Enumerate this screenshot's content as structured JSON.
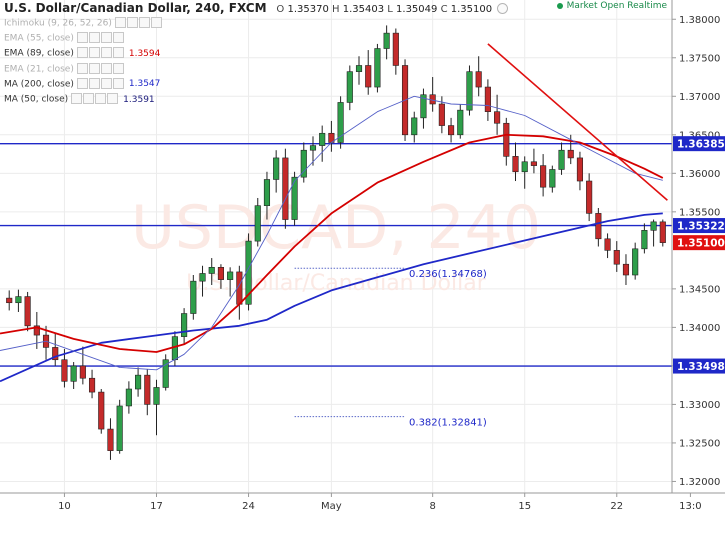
{
  "header": {
    "title": "U.S. Dollar/Canadian Dollar, 240, FXCM",
    "ohlc": [
      {
        "k": "O",
        "v": "1.35370"
      },
      {
        "k": "H",
        "v": "1.35403"
      },
      {
        "k": "L",
        "v": "1.35049"
      },
      {
        "k": "C",
        "v": "1.35100"
      }
    ]
  },
  "market_status": "Market Open Realtime",
  "indicators": [
    {
      "label": "Ichimoku (9, 26, 52, 26)",
      "value": "",
      "color": "#b0b0b0",
      "faded": true
    },
    {
      "label": "EMA (55, close)",
      "value": "",
      "color": "#b0b0b0",
      "faded": true
    },
    {
      "label": "EMA (89, close)",
      "value": "1.3594",
      "color": "#d40000",
      "faded": false
    },
    {
      "label": "EMA (21, close)",
      "value": "",
      "color": "#b0b0b0",
      "faded": true
    },
    {
      "label": "MA (200, close)",
      "value": "1.3547",
      "color": "#1f28c8",
      "faded": false
    },
    {
      "label": "MA (50, close)",
      "value": "1.3591",
      "color": "#1a1a7a",
      "faded": false
    }
  ],
  "watermark": {
    "symbol": "USDCAD, 240",
    "name": "U.S. Dollar/Canadian Dollar"
  },
  "chart_data": {
    "type": "candlestick",
    "ylim": [
      1.3185,
      1.3825
    ],
    "xlim": [
      -1,
      72
    ],
    "x_tick_labels": [
      {
        "i": 6,
        "label": "10"
      },
      {
        "i": 16,
        "label": "17"
      },
      {
        "i": 26,
        "label": "24"
      },
      {
        "i": 35,
        "label": "May"
      },
      {
        "i": 46,
        "label": "8"
      },
      {
        "i": 56,
        "label": "15"
      },
      {
        "i": 66,
        "label": "22"
      },
      {
        "i": 74,
        "label": "13:0"
      }
    ],
    "y_ticks": [
      "1.38000",
      "1.37500",
      "1.37000",
      "1.36500",
      "1.36000",
      "1.35500",
      "1.34500",
      "1.34000",
      "1.33500",
      "1.33000",
      "1.32500",
      "1.32000"
    ],
    "price_labels": [
      {
        "value": 1.36385,
        "text": "1.36385",
        "bg": "#1f28c8"
      },
      {
        "value": 1.35322,
        "text": "1.35322",
        "bg": "#1f28c8"
      },
      {
        "value": 1.351,
        "text": "1.35100",
        "bg": "#e01010"
      },
      {
        "value": 1.33498,
        "text": "1.33498",
        "bg": "#1f28c8"
      }
    ],
    "horizontal_lines": [
      1.36385,
      1.35322,
      1.33498
    ],
    "fib_labels": [
      {
        "text": "0.236(1.34768)",
        "value": 1.34768,
        "i0": 31,
        "i1": 43
      },
      {
        "text": "0.382(1.32841)",
        "value": 1.32841,
        "i0": 31,
        "i1": 43
      }
    ],
    "trendline": {
      "i0": 52,
      "v0": 1.3768,
      "i1": 71.5,
      "v1": 1.3565
    },
    "candles": [
      [
        1.3438,
        1.3448,
        1.3422,
        1.3432
      ],
      [
        1.3432,
        1.3449,
        1.342,
        1.344
      ],
      [
        1.344,
        1.3446,
        1.3395,
        1.3402
      ],
      [
        1.3402,
        1.342,
        1.3372,
        1.339
      ],
      [
        1.339,
        1.3402,
        1.3358,
        1.3374
      ],
      [
        1.3374,
        1.3392,
        1.335,
        1.3358
      ],
      [
        1.3358,
        1.3372,
        1.3322,
        1.333
      ],
      [
        1.333,
        1.3355,
        1.332,
        1.335
      ],
      [
        1.335,
        1.3375,
        1.3326,
        1.3334
      ],
      [
        1.3334,
        1.3345,
        1.3308,
        1.3316
      ],
      [
        1.3316,
        1.332,
        1.3262,
        1.3268
      ],
      [
        1.3268,
        1.3282,
        1.3228,
        1.324
      ],
      [
        1.324,
        1.3306,
        1.3236,
        1.3298
      ],
      [
        1.3298,
        1.333,
        1.3288,
        1.332
      ],
      [
        1.332,
        1.3348,
        1.331,
        1.3338
      ],
      [
        1.3338,
        1.3346,
        1.3286,
        1.33
      ],
      [
        1.33,
        1.3332,
        1.326,
        1.3322
      ],
      [
        1.3322,
        1.3365,
        1.3318,
        1.3358
      ],
      [
        1.3358,
        1.3395,
        1.335,
        1.3388
      ],
      [
        1.3388,
        1.3425,
        1.3378,
        1.3418
      ],
      [
        1.3418,
        1.3468,
        1.341,
        1.346
      ],
      [
        1.346,
        1.348,
        1.344,
        1.347
      ],
      [
        1.347,
        1.349,
        1.3455,
        1.3478
      ],
      [
        1.3478,
        1.3482,
        1.345,
        1.3462
      ],
      [
        1.3462,
        1.3478,
        1.344,
        1.3472
      ],
      [
        1.3472,
        1.348,
        1.341,
        1.343
      ],
      [
        1.343,
        1.3522,
        1.3422,
        1.3512
      ],
      [
        1.3512,
        1.3568,
        1.3505,
        1.3558
      ],
      [
        1.3558,
        1.3602,
        1.354,
        1.3592
      ],
      [
        1.3592,
        1.363,
        1.3575,
        1.362
      ],
      [
        1.362,
        1.3632,
        1.3528,
        1.354
      ],
      [
        1.354,
        1.3602,
        1.3532,
        1.3595
      ],
      [
        1.3595,
        1.364,
        1.3588,
        1.363
      ],
      [
        1.363,
        1.3648,
        1.361,
        1.3636
      ],
      [
        1.3636,
        1.3662,
        1.3615,
        1.3652
      ],
      [
        1.3652,
        1.3668,
        1.3628,
        1.364
      ],
      [
        1.364,
        1.37,
        1.3632,
        1.3692
      ],
      [
        1.3692,
        1.374,
        1.3682,
        1.3732
      ],
      [
        1.3732,
        1.3752,
        1.3715,
        1.374
      ],
      [
        1.374,
        1.376,
        1.3702,
        1.3712
      ],
      [
        1.3712,
        1.3768,
        1.3705,
        1.3762
      ],
      [
        1.3762,
        1.3792,
        1.3748,
        1.3782
      ],
      [
        1.3782,
        1.3788,
        1.3728,
        1.374
      ],
      [
        1.374,
        1.3748,
        1.3642,
        1.365
      ],
      [
        1.365,
        1.368,
        1.364,
        1.3672
      ],
      [
        1.3672,
        1.371,
        1.3658,
        1.3702
      ],
      [
        1.3702,
        1.3725,
        1.368,
        1.369
      ],
      [
        1.369,
        1.37,
        1.3652,
        1.3662
      ],
      [
        1.3662,
        1.3672,
        1.364,
        1.365
      ],
      [
        1.365,
        1.369,
        1.3645,
        1.3682
      ],
      [
        1.3682,
        1.374,
        1.3675,
        1.3732
      ],
      [
        1.3732,
        1.3752,
        1.37,
        1.3712
      ],
      [
        1.3712,
        1.3722,
        1.3668,
        1.368
      ],
      [
        1.368,
        1.3702,
        1.365,
        1.3665
      ],
      [
        1.3665,
        1.3672,
        1.361,
        1.3622
      ],
      [
        1.3622,
        1.364,
        1.359,
        1.3602
      ],
      [
        1.3602,
        1.3622,
        1.358,
        1.3615
      ],
      [
        1.3615,
        1.3632,
        1.36,
        1.361
      ],
      [
        1.361,
        1.3625,
        1.357,
        1.3582
      ],
      [
        1.3582,
        1.361,
        1.3575,
        1.3605
      ],
      [
        1.3605,
        1.364,
        1.3598,
        1.363
      ],
      [
        1.363,
        1.365,
        1.3612,
        1.362
      ],
      [
        1.362,
        1.3628,
        1.3578,
        1.359
      ],
      [
        1.359,
        1.36,
        1.3538,
        1.3548
      ],
      [
        1.3548,
        1.3555,
        1.3505,
        1.3515
      ],
      [
        1.3515,
        1.3522,
        1.349,
        1.35
      ],
      [
        1.35,
        1.3512,
        1.3472,
        1.3482
      ],
      [
        1.3482,
        1.3495,
        1.3455,
        1.3468
      ],
      [
        1.3468,
        1.351,
        1.3462,
        1.3502
      ],
      [
        1.3502,
        1.3535,
        1.3496,
        1.3526
      ],
      [
        1.3526,
        1.354,
        1.3505,
        1.3537
      ],
      [
        1.3537,
        1.354,
        1.3505,
        1.351
      ]
    ],
    "series": [
      {
        "name": "MA (200, close)",
        "color": "#1f28c8",
        "width": 1.8,
        "points": [
          [
            -1,
            1.333
          ],
          [
            5,
            1.3362
          ],
          [
            10,
            1.338
          ],
          [
            15,
            1.3388
          ],
          [
            20,
            1.3396
          ],
          [
            25,
            1.3402
          ],
          [
            28,
            1.341
          ],
          [
            31,
            1.3428
          ],
          [
            35,
            1.3448
          ],
          [
            40,
            1.3465
          ],
          [
            45,
            1.3482
          ],
          [
            50,
            1.3496
          ],
          [
            55,
            1.351
          ],
          [
            60,
            1.3524
          ],
          [
            65,
            1.3538
          ],
          [
            69,
            1.3546
          ],
          [
            71,
            1.3548
          ]
        ]
      },
      {
        "name": "EMA (89, close)",
        "color": "#d40000",
        "width": 1.8,
        "points": [
          [
            -1,
            1.3392
          ],
          [
            3,
            1.34
          ],
          [
            7,
            1.3385
          ],
          [
            12,
            1.3372
          ],
          [
            16,
            1.3368
          ],
          [
            19,
            1.3378
          ],
          [
            22,
            1.3398
          ],
          [
            25,
            1.343
          ],
          [
            28,
            1.3468
          ],
          [
            31,
            1.3505
          ],
          [
            35,
            1.3548
          ],
          [
            40,
            1.3588
          ],
          [
            45,
            1.3615
          ],
          [
            50,
            1.364
          ],
          [
            54,
            1.365
          ],
          [
            58,
            1.3648
          ],
          [
            62,
            1.364
          ],
          [
            66,
            1.3622
          ],
          [
            69,
            1.3606
          ],
          [
            71,
            1.3594
          ]
        ]
      },
      {
        "name": "MA (50, close)",
        "color": "#5560c8",
        "width": 0.9,
        "points": [
          [
            -1,
            1.337
          ],
          [
            4,
            1.3382
          ],
          [
            8,
            1.3365
          ],
          [
            12,
            1.3348
          ],
          [
            16,
            1.3345
          ],
          [
            19,
            1.3365
          ],
          [
            22,
            1.34
          ],
          [
            25,
            1.3455
          ],
          [
            28,
            1.352
          ],
          [
            31,
            1.359
          ],
          [
            35,
            1.364
          ],
          [
            40,
            1.368
          ],
          [
            44,
            1.37
          ],
          [
            48,
            1.369
          ],
          [
            52,
            1.3688
          ],
          [
            56,
            1.3675
          ],
          [
            60,
            1.365
          ],
          [
            64,
            1.3625
          ],
          [
            68,
            1.36
          ],
          [
            71,
            1.3591
          ]
        ]
      }
    ]
  }
}
